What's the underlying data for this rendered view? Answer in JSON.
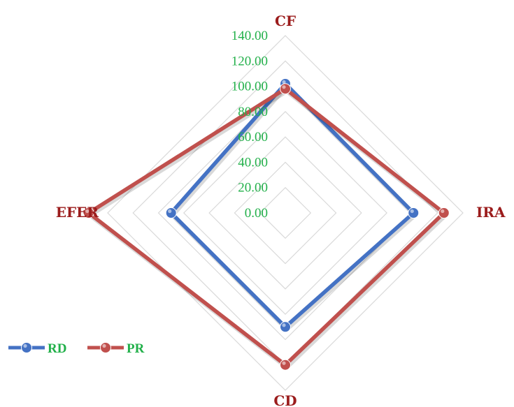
{
  "chart_data": {
    "type": "radar",
    "axes": [
      "CF",
      "IRA",
      "CD",
      "EFER"
    ],
    "r_ticks": [
      "0.00",
      "20.00",
      "40.00",
      "60.00",
      "80.00",
      "100.00",
      "120.00",
      "140.00"
    ],
    "r_max": 140,
    "grid": true,
    "legend_position": "bottom-left",
    "series": [
      {
        "name": "RD",
        "values": [
          102,
          101,
          90,
          90
        ],
        "color": "#4472c4"
      },
      {
        "name": "PR",
        "values": [
          98,
          125,
          120,
          155
        ],
        "color": "#c0504d"
      }
    ],
    "colors": {
      "axis_label": "#9b1c1c",
      "tick_label": "#22b04a",
      "legend_label": "#22b04a",
      "grid": "#d9d9d9"
    }
  }
}
